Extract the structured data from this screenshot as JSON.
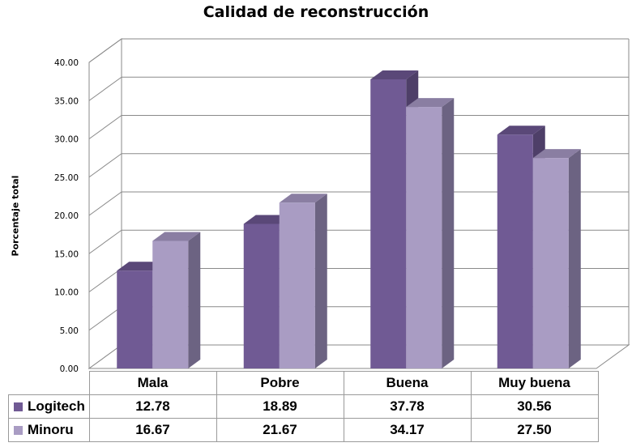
{
  "chart_data": {
    "type": "bar",
    "title": "Calidad de reconstrucción",
    "ylabel": "Porcentaje total",
    "xlabel": "",
    "categories": [
      "Mala",
      "Pobre",
      "Buena",
      "Muy buena"
    ],
    "series": [
      {
        "name": "Logitech",
        "values": [
          12.78,
          18.89,
          37.78,
          30.56
        ],
        "value_labels": [
          "12.78",
          "18.89",
          "37.78",
          "30.56"
        ],
        "color": "#705a94"
      },
      {
        "name": "Minoru",
        "values": [
          16.67,
          21.67,
          34.17,
          27.5
        ],
        "value_labels": [
          "16.67",
          "21.67",
          "34.17",
          "27.50"
        ],
        "color": "#a99cc3"
      }
    ],
    "ylim": [
      0,
      40
    ],
    "yticks": [
      "0.00",
      "5.00",
      "10.00",
      "15.00",
      "20.00",
      "25.00",
      "30.00",
      "35.00",
      "40.00"
    ],
    "grid": true,
    "three_d": true,
    "legend": "data-table"
  }
}
